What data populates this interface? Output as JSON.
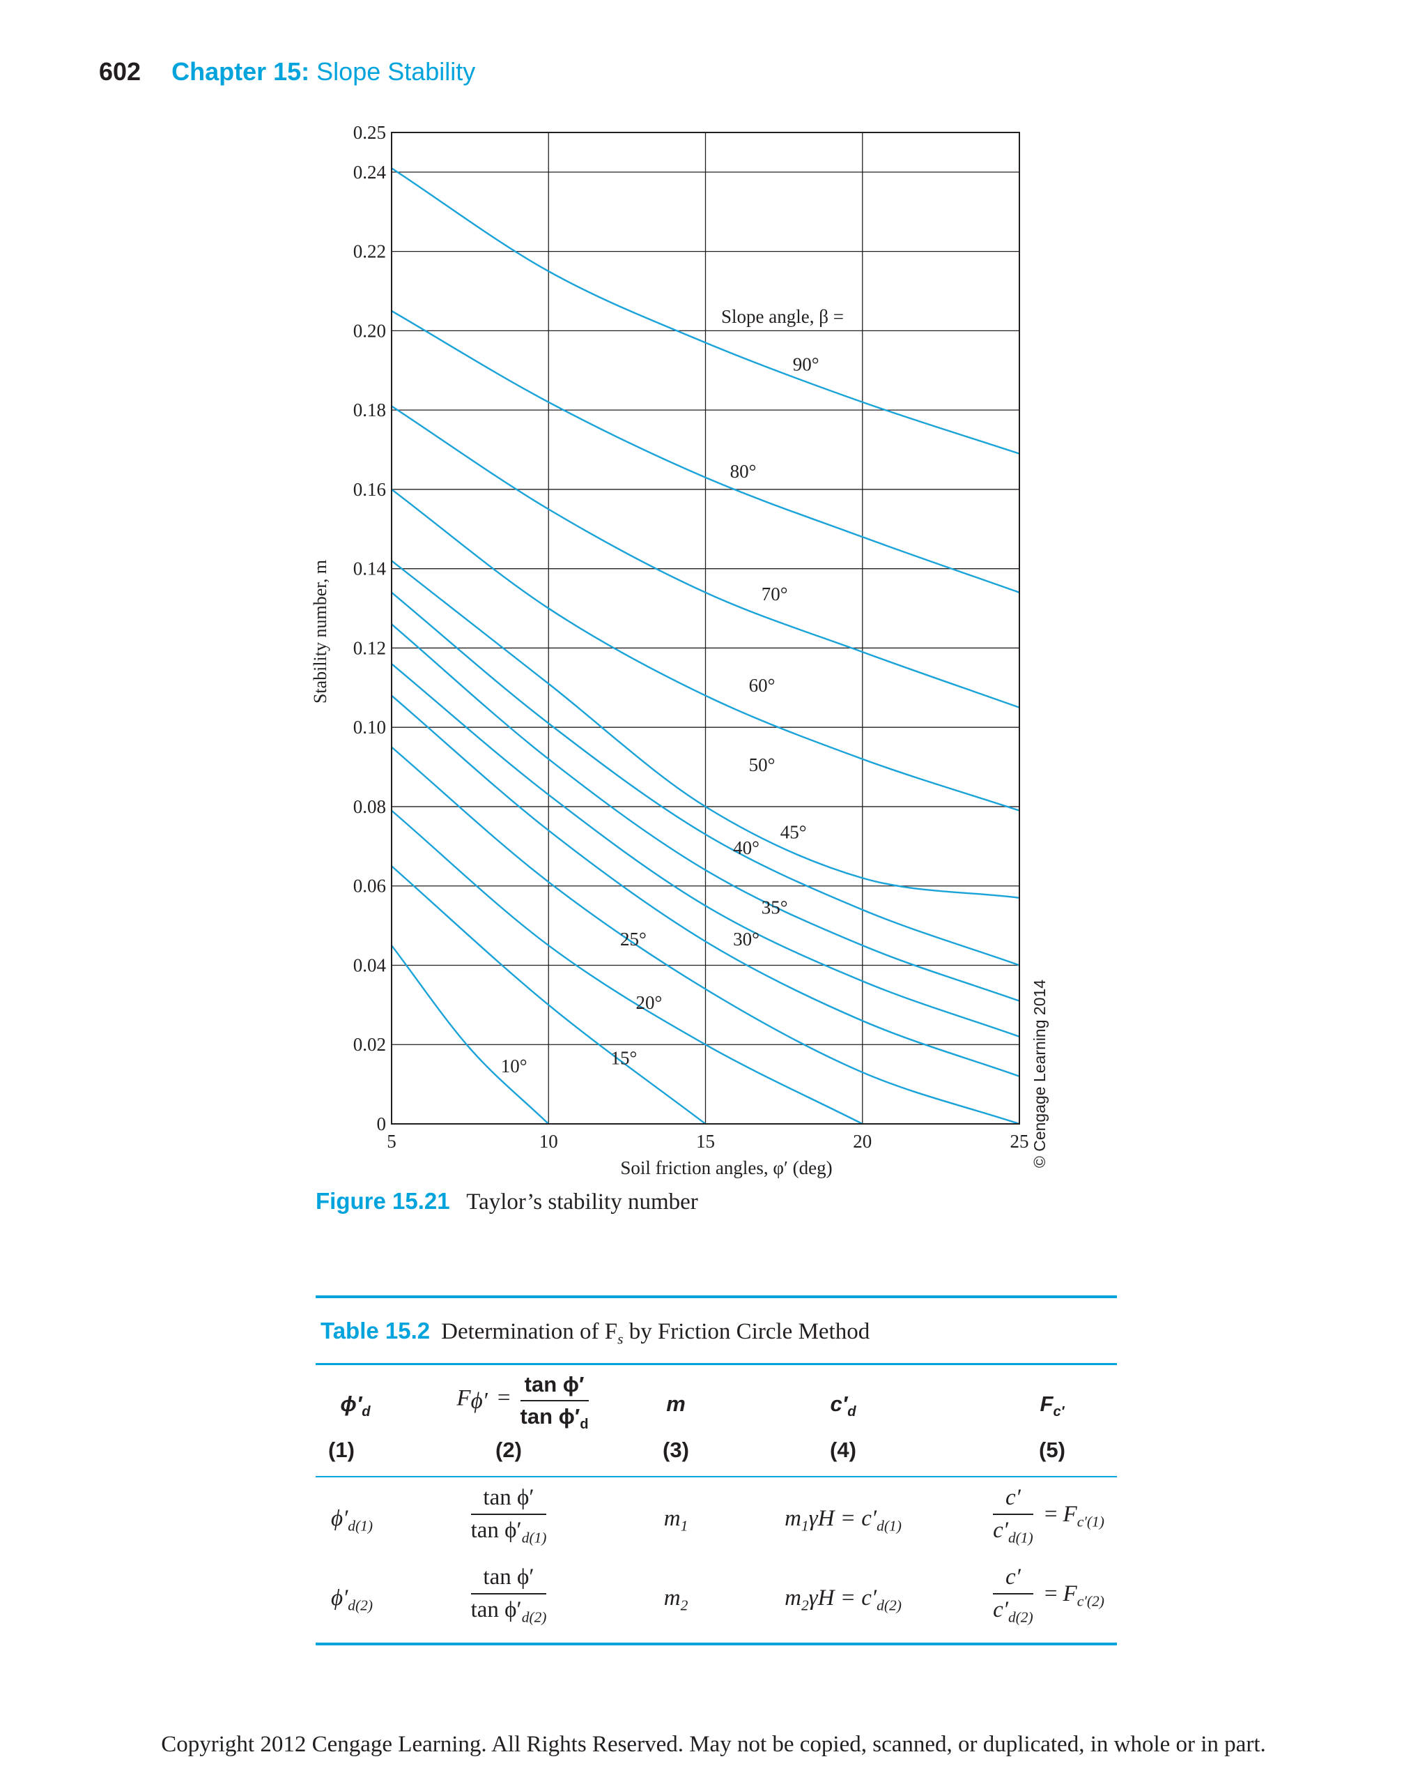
{
  "header": {
    "page_number": "602",
    "chapter_label": "Chapter 15:",
    "chapter_title": "Slope Stability"
  },
  "figure": {
    "label": "Figure 15.21",
    "caption": "Taylor’s stability number",
    "copyright_side": "© Cengage Learning 2014"
  },
  "chart_data": {
    "type": "line",
    "xlabel": "Soil friction angles, φ′ (deg)",
    "ylabel": "Stability number, m",
    "xlim": [
      5,
      25
    ],
    "ylim": [
      0,
      0.25
    ],
    "x_ticks": [
      "5",
      "10",
      "15",
      "20",
      "25"
    ],
    "y_ticks": [
      "0",
      "0.02",
      "0.04",
      "0.06",
      "0.08",
      "0.10",
      "0.12",
      "0.14",
      "0.16",
      "0.18",
      "0.20",
      "0.22",
      "0.24",
      "0.25"
    ],
    "grid": true,
    "slope_label": "Slope angle, β =",
    "series": [
      {
        "name": "90°",
        "x": [
          5,
          10,
          15,
          20,
          25
        ],
        "y": [
          0.241,
          0.215,
          0.197,
          0.182,
          0.169
        ]
      },
      {
        "name": "80°",
        "x": [
          5,
          10,
          15,
          20,
          25
        ],
        "y": [
          0.205,
          0.182,
          0.163,
          0.148,
          0.134
        ]
      },
      {
        "name": "70°",
        "x": [
          5,
          10,
          15,
          20,
          25
        ],
        "y": [
          0.181,
          0.155,
          0.134,
          0.119,
          0.105
        ]
      },
      {
        "name": "60°",
        "x": [
          5,
          10,
          15,
          20,
          25
        ],
        "y": [
          0.16,
          0.13,
          0.108,
          0.092,
          0.079
        ]
      },
      {
        "name": "50°",
        "x": [
          5,
          10,
          15,
          20,
          25
        ],
        "y": [
          0.142,
          0.111,
          0.08,
          0.062,
          0.057
        ]
      },
      {
        "name": "45°",
        "x": [
          5,
          10,
          15,
          20,
          25
        ],
        "y": [
          0.134,
          0.101,
          0.073,
          0.054,
          0.04
        ]
      },
      {
        "name": "40°",
        "x": [
          5,
          10,
          15,
          20,
          25
        ],
        "y": [
          0.126,
          0.092,
          0.064,
          0.045,
          0.031
        ]
      },
      {
        "name": "35°",
        "x": [
          5,
          10,
          15,
          20,
          25
        ],
        "y": [
          0.116,
          0.083,
          0.055,
          0.036,
          0.022
        ]
      },
      {
        "name": "30°",
        "x": [
          5,
          10,
          15,
          20,
          25
        ],
        "y": [
          0.108,
          0.074,
          0.046,
          0.026,
          0.012
        ]
      },
      {
        "name": "25°",
        "x": [
          5,
          10,
          15,
          20,
          25
        ],
        "y": [
          0.095,
          0.061,
          0.034,
          0.013,
          0.0
        ]
      },
      {
        "name": "20°",
        "x": [
          5,
          10,
          15,
          20
        ],
        "y": [
          0.079,
          0.045,
          0.02,
          0.0
        ]
      },
      {
        "name": "15°",
        "x": [
          5,
          10,
          15
        ],
        "y": [
          0.065,
          0.03,
          0.0
        ]
      },
      {
        "name": "10°",
        "x": [
          5,
          7.5,
          10
        ],
        "y": [
          0.045,
          0.019,
          0.0
        ]
      }
    ],
    "annotations": [
      {
        "text": "90°",
        "x": 18.2,
        "y": 0.19
      },
      {
        "text": "80°",
        "x": 16.2,
        "y": 0.163
      },
      {
        "text": "70°",
        "x": 17.2,
        "y": 0.132
      },
      {
        "text": "60°",
        "x": 16.8,
        "y": 0.109
      },
      {
        "text": "50°",
        "x": 16.8,
        "y": 0.089
      },
      {
        "text": "45°",
        "x": 17.8,
        "y": 0.072
      },
      {
        "text": "40°",
        "x": 16.3,
        "y": 0.068
      },
      {
        "text": "35°",
        "x": 17.2,
        "y": 0.053
      },
      {
        "text": "30°",
        "x": 16.3,
        "y": 0.045
      },
      {
        "text": "25°",
        "x": 12.7,
        "y": 0.045
      },
      {
        "text": "20°",
        "x": 13.2,
        "y": 0.029
      },
      {
        "text": "15°",
        "x": 12.4,
        "y": 0.015
      },
      {
        "text": "10°",
        "x": 8.9,
        "y": 0.013
      }
    ]
  },
  "table": {
    "label": "Table 15.2",
    "caption": "Determination of F",
    "caption_sub": "s",
    "caption_end": " by Friction Circle Method",
    "headers": {
      "c1": "ϕ′",
      "c1_sub": "d",
      "c2_lhs": "F",
      "c2_lhs_sub": "ϕ′",
      "c2_eq": "=",
      "c2_num": "tan ϕ′",
      "c2_den": "tan ϕ′",
      "c2_den_sub": "d",
      "c3": "m",
      "c4": "c′",
      "c4_sub": "d",
      "c5": "F",
      "c5_sub": "c′"
    },
    "col_numbers": [
      "(1)",
      "(2)",
      "(3)",
      "(4)",
      "(5)"
    ],
    "rows": [
      {
        "phi": "ϕ′",
        "phi_sub": "d(1)",
        "num": "tan ϕ′",
        "den": "tan ϕ′",
        "den_sub": "d(1)",
        "m": "m",
        "m_sub": "1",
        "c_lhs": "m",
        "c_lhs_sub": "1",
        "c_mid": "γH = c′",
        "c_mid_sub": "d(1)",
        "f_num": "c′",
        "f_den": "c′",
        "f_den_sub": "d(1)",
        "f_eq": "=",
        "f_res": "F",
        "f_res_sub": "c′(1)"
      },
      {
        "phi": "ϕ′",
        "phi_sub": "d(2)",
        "num": "tan ϕ′",
        "den": "tan ϕ′",
        "den_sub": "d(2)",
        "m": "m",
        "m_sub": "2",
        "c_lhs": "m",
        "c_lhs_sub": "2",
        "c_mid": "γH = c′",
        "c_mid_sub": "d(2)",
        "f_num": "c′",
        "f_den": "c′",
        "f_den_sub": "d(2)",
        "f_eq": "=",
        "f_res": "F",
        "f_res_sub": "c′(2)"
      }
    ]
  },
  "footer": "Copyright 2012 Cengage Learning. All Rights Reserved. May not be copied, scanned, or duplicated, in whole or in part.",
  "colors": {
    "accent": "#00a3dc",
    "curve": "#1aa3d9",
    "text": "#231f20"
  }
}
